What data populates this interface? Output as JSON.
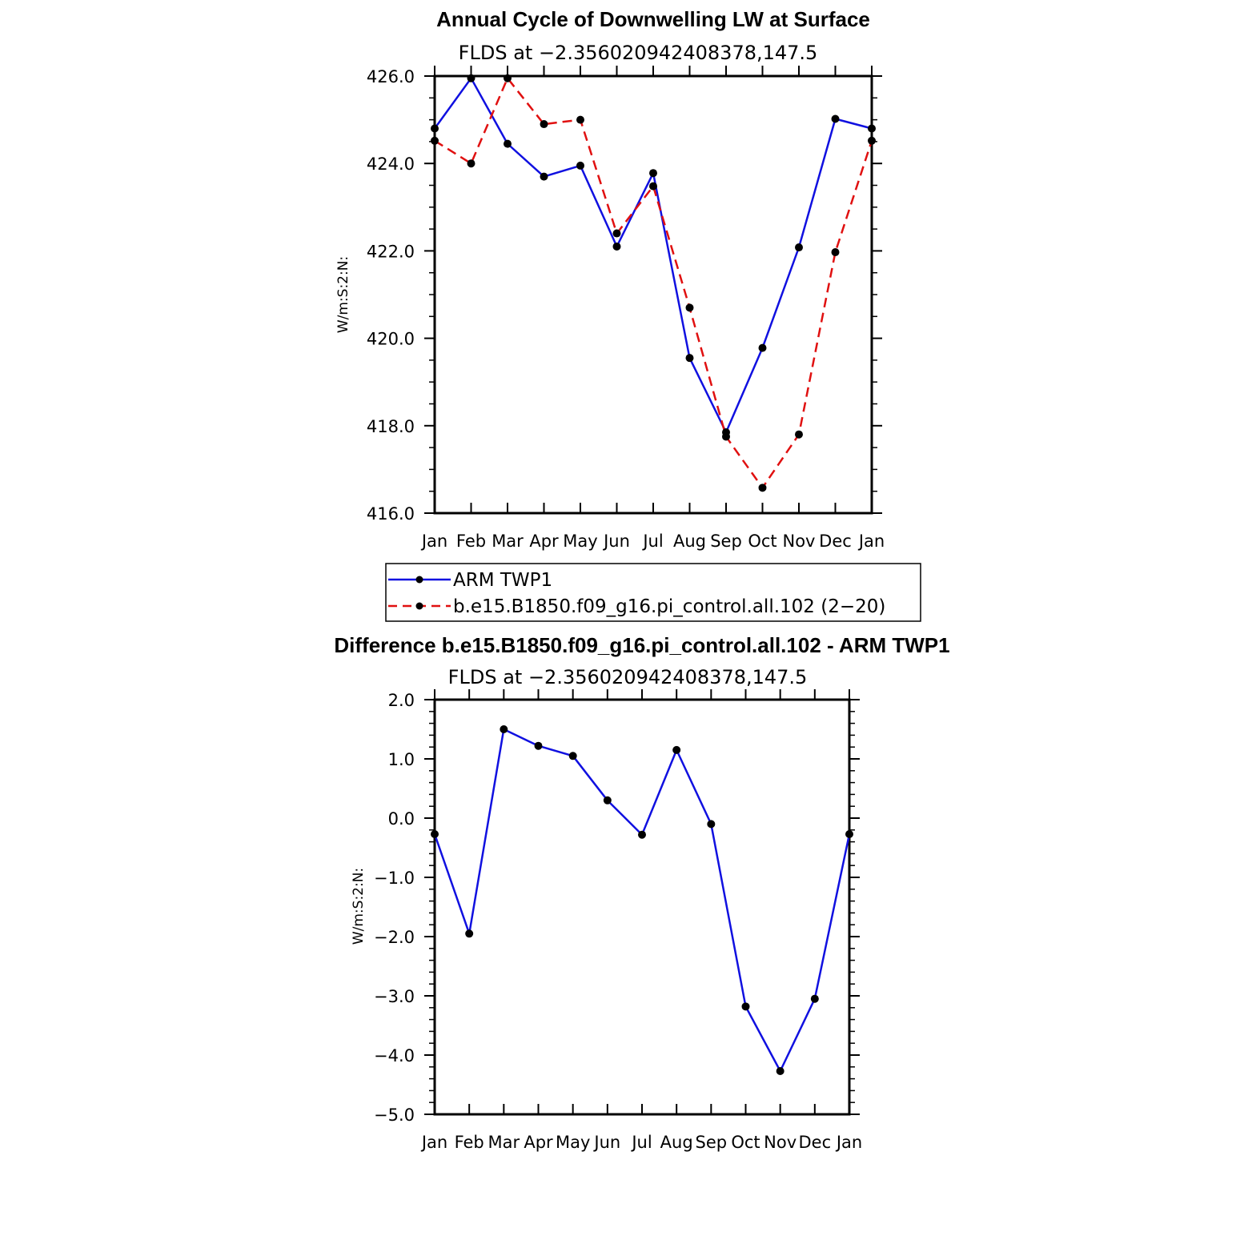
{
  "colors": {
    "series1": "#1010e0",
    "series2": "#e01010",
    "marker": "#000000"
  },
  "chart_data": [
    {
      "type": "line",
      "title": "Annual Cycle of Downwelling LW at Surface",
      "subtitle": "FLDS at −2.356020942408378,147.5",
      "ylabel": "W/m:S:2:N:",
      "xlabel": "",
      "categories": [
        "Jan",
        "Feb",
        "Mar",
        "Apr",
        "May",
        "Jun",
        "Jul",
        "Aug",
        "Sep",
        "Oct",
        "Nov",
        "Dec",
        "Jan"
      ],
      "ylim": [
        416.0,
        426.0
      ],
      "yticks": [
        "416.0",
        "418.0",
        "420.0",
        "422.0",
        "424.0",
        "426.0"
      ],
      "legend_position": "bottom",
      "grid": false,
      "series": [
        {
          "name": "ARM TWP1",
          "style": "solid",
          "values": [
            424.8,
            425.95,
            424.45,
            423.7,
            423.95,
            422.1,
            423.78,
            419.55,
            417.85,
            419.78,
            422.08,
            425.02,
            424.8
          ]
        },
        {
          "name": "b.e15.B1850.f09_g16.pi_control.all.102 (2−20)",
          "style": "dashed",
          "values": [
            424.52,
            424.0,
            425.95,
            424.9,
            425.0,
            422.4,
            423.48,
            420.7,
            417.75,
            416.58,
            417.8,
            421.97,
            424.52
          ]
        }
      ]
    },
    {
      "type": "line",
      "title": "Difference b.e15.B1850.f09_g16.pi_control.all.102 - ARM TWP1",
      "subtitle": "FLDS at −2.356020942408378,147.5",
      "ylabel": "W/m:S:2:N:",
      "xlabel": "",
      "categories": [
        "Jan",
        "Feb",
        "Mar",
        "Apr",
        "May",
        "Jun",
        "Jul",
        "Aug",
        "Sep",
        "Oct",
        "Nov",
        "Dec",
        "Jan"
      ],
      "ylim": [
        -5.0,
        2.0
      ],
      "yticks": [
        "−5.0",
        "−4.0",
        "−3.0",
        "−2.0",
        "−1.0",
        "0.0",
        "1.0",
        "2.0"
      ],
      "grid": false,
      "series": [
        {
          "style": "solid",
          "values": [
            -0.27,
            -1.95,
            1.5,
            1.22,
            1.05,
            0.3,
            -0.28,
            1.15,
            -0.1,
            -3.18,
            -4.27,
            -3.05,
            -0.27
          ]
        }
      ]
    }
  ]
}
